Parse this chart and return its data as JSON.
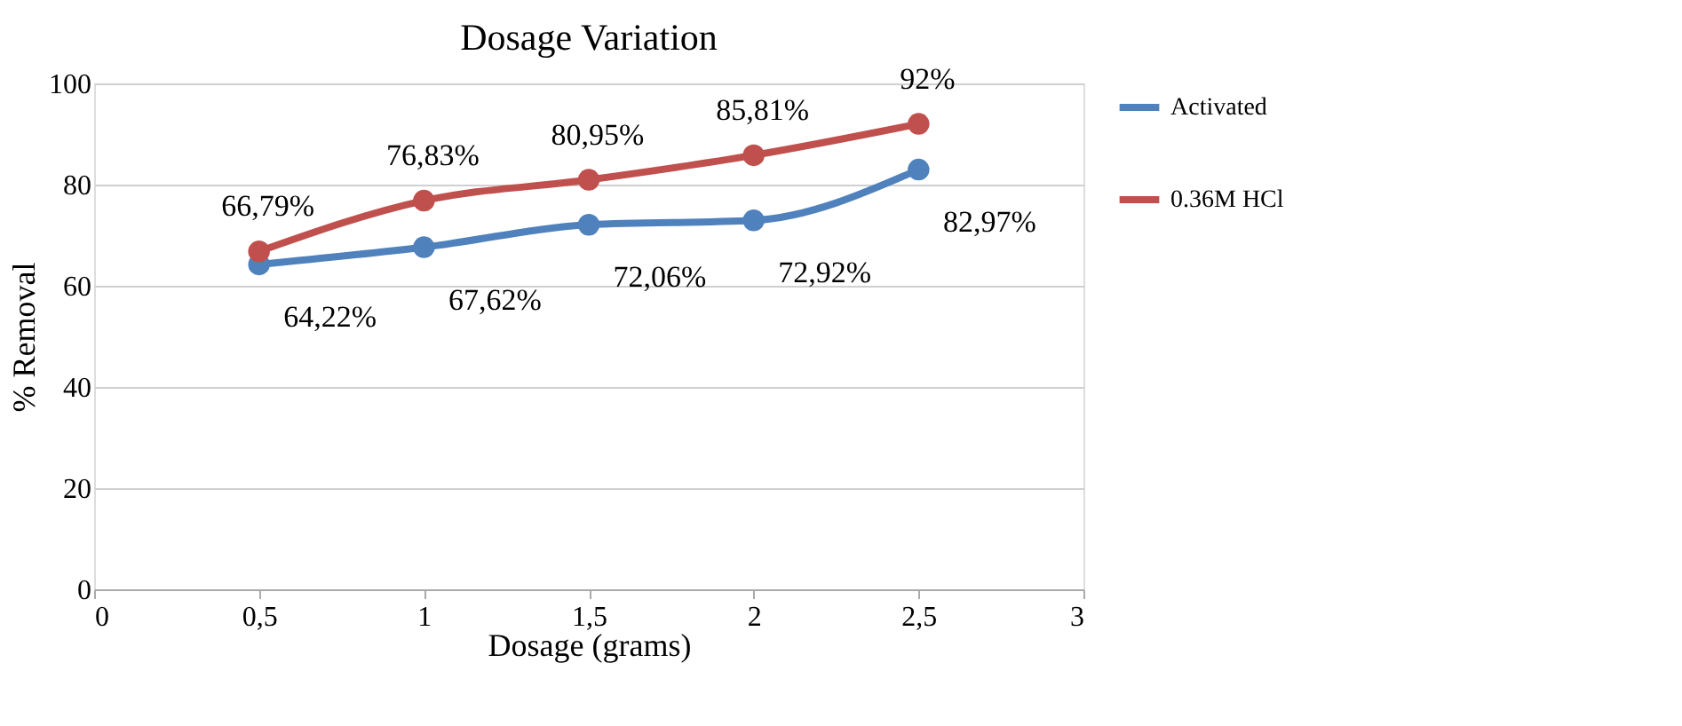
{
  "chart_data": {
    "type": "line",
    "title": "Dosage Variation",
    "xlabel": "Dosage (grams)",
    "ylabel": "% Removal",
    "x": [
      0.5,
      1,
      1.5,
      2,
      2.5
    ],
    "series": [
      {
        "name": "Activated",
        "color": "#4f81bd",
        "values": [
          64.22,
          67.62,
          72.06,
          72.92,
          82.97
        ],
        "value_labels": [
          "64,22%",
          "67,62%",
          "72,06%",
          "72,92%",
          "82,97%"
        ]
      },
      {
        "name": "0.36M HCl",
        "color": "#c0504d",
        "values": [
          66.79,
          76.83,
          80.95,
          85.81,
          92
        ],
        "value_labels": [
          "66,79%",
          "76,83%",
          "80,95%",
          "85,81%",
          "92%"
        ]
      }
    ],
    "xlim": [
      0,
      3
    ],
    "xticks": [
      0,
      {
        "value": 0.5,
        "label": "0,5"
      },
      1,
      {
        "value": 1.5,
        "label": "1,5"
      },
      2,
      {
        "value": 2.5,
        "label": "2,5"
      },
      3
    ],
    "ylim": [
      0,
      100
    ],
    "yticks": [
      0,
      20,
      40,
      60,
      80,
      100
    ],
    "grid": "y",
    "legend": "right",
    "marker": "circle",
    "line_style": "solid"
  }
}
